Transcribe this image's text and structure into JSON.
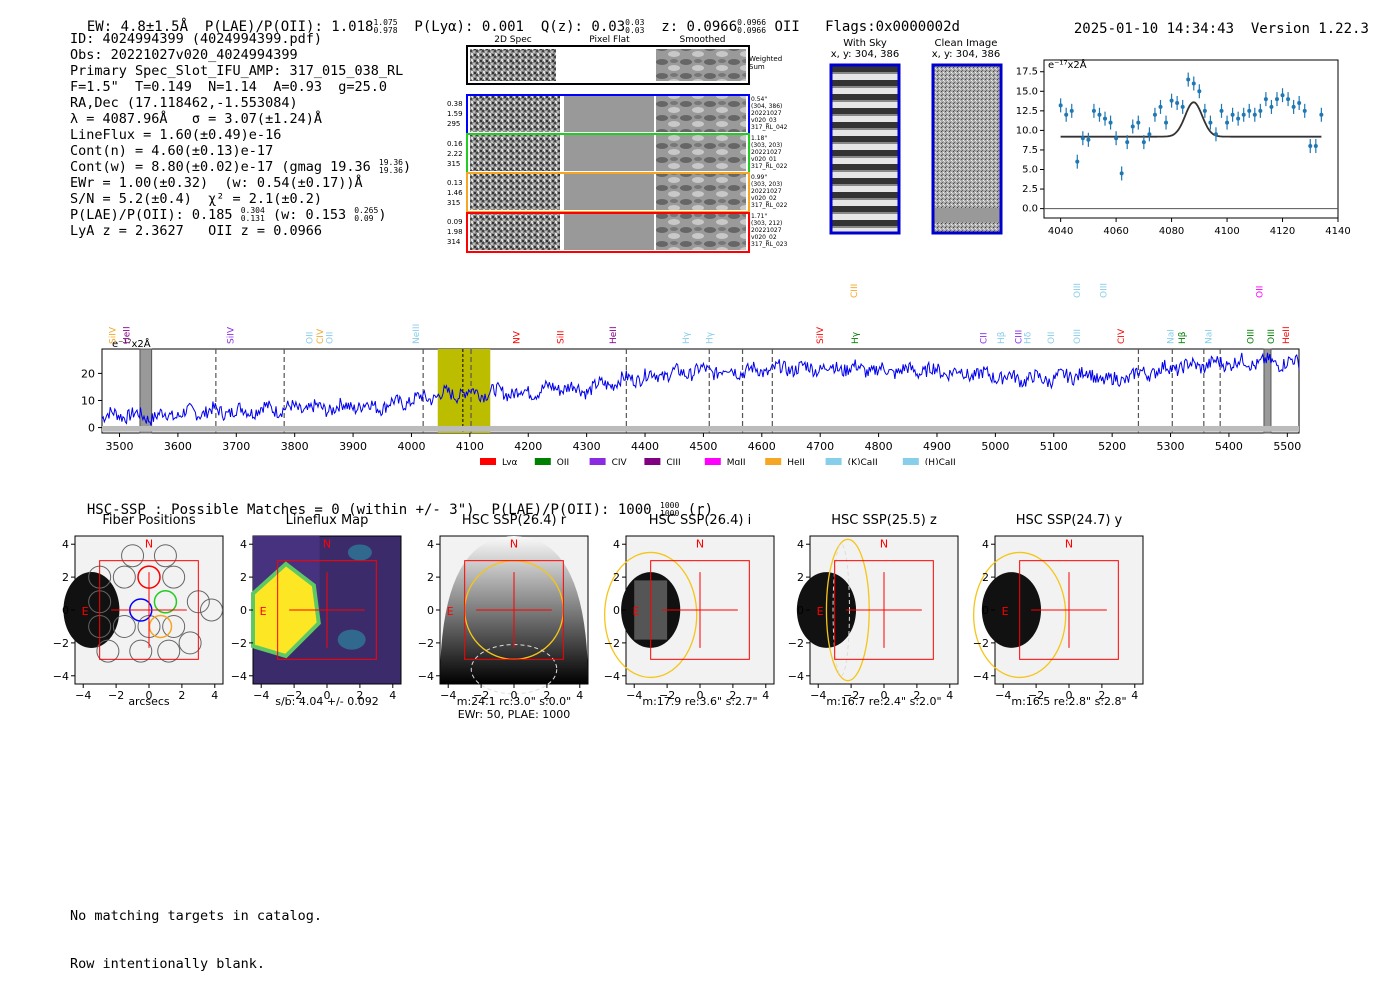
{
  "header": {
    "ew": "EW: 4.8±1.5Å",
    "plae_label": "P(LAE)/P(OII): 1.018",
    "plae_hi": "1.075",
    "plae_lo": "0.978",
    "plya": "P(Lyα): 0.001",
    "qz_label": "Q(z): 0.03",
    "qz_hi": "0.03",
    "qz_lo": "0.03",
    "z_label": "z: 0.0966",
    "z_hi": "0.0966",
    "z_lo": "0.0966",
    "z_line": "OII",
    "flags": "Flags:0x0000002d",
    "timestamp": "2025-01-10 14:34:43",
    "version": "Version 1.22.3"
  },
  "info": {
    "lines": [
      "ID: 4024994399 (4024994399.pdf)",
      "Obs: 20221027v020_4024994399",
      "Primary Spec_Slot_IFU_AMP: 317_015_038_RL",
      "F=1.5\"  T=0.149  N=1.14  A=0.93  g=25.0",
      "RA,Dec (17.118462,-1.553084)",
      "λ = 4087.96Å   σ = 3.07(±1.24)Å",
      "LineFlux = 1.60(±0.49)e-16",
      "Cont(n) = 4.60(±0.13)e-17"
    ],
    "contw": "Cont(w) = 8.80(±0.02)e-17 (gmag 19.36",
    "contw_hi": "19.36",
    "contw_lo": "19.36",
    "contw_end": ")",
    "ewr": "EWr = 1.00(±0.32)  (w: 0.54(±0.17))Å",
    "sn": "S/N = 5.2(±0.4)  χ² = 2.1(±0.2)",
    "plae": "P(LAE)/P(OII): 0.185",
    "plae_hi": "0.304",
    "plae_lo": "0.131",
    "plae_w": "(w: 0.153",
    "plae_w_hi": "0.265",
    "plae_w_lo": "0.09",
    "plae_w_end": ")",
    "lya_z": "LyA z = 2.3627   OII z = 0.0966"
  },
  "cutouts": {
    "headers": [
      "2D Spec",
      "Pixel Flat",
      "Smoothed"
    ],
    "weighted_label": "Weighted Sum",
    "rows": [
      {
        "left": [
          "0.38",
          "1.59",
          "295"
        ],
        "right": [
          "0.54\"",
          "(304, 386)",
          "20221027",
          "v020_03",
          "317_RL_042"
        ],
        "color": "#0000ff"
      },
      {
        "left": [
          "0.16",
          "2.22",
          "315"
        ],
        "right": [
          "1.18\"",
          "(303, 203)",
          "20221027",
          "v020_01",
          "317_RL_022"
        ],
        "color": "#22cc22"
      },
      {
        "left": [
          "0.13",
          "1.46",
          "315"
        ],
        "right": [
          "0.99\"",
          "(303, 203)",
          "20221027",
          "v020_02",
          "317_RL_022"
        ],
        "color": "#f5a623"
      },
      {
        "left": [
          "0.09",
          "1.98",
          "314"
        ],
        "right": [
          "1.71\"",
          "(303, 212)",
          "20221027",
          "v020_02",
          "317_RL_023"
        ],
        "color": "#ff0000"
      }
    ],
    "with_sky_title": "With Sky",
    "with_sky_xy": "x, y: 304, 386",
    "clean_title": "Clean Image",
    "clean_xy": "x, y: 304, 386"
  },
  "fit_plot": {
    "unit": "e⁻¹⁷x2Å",
    "xticks": [
      "4040",
      "4060",
      "4080",
      "4100",
      "4120",
      "4140"
    ],
    "yticks": [
      "0.0",
      "2.5",
      "5.0",
      "7.5",
      "10.0",
      "12.5",
      "15.0",
      "17.5"
    ]
  },
  "chart_data": [
    {
      "type": "scatter",
      "title": "",
      "xlabel": "",
      "ylabel": "e⁻¹⁷x2Å",
      "xlim": [
        4034,
        4140
      ],
      "ylim": [
        -1.2,
        19
      ],
      "points": [
        [
          4040,
          13.2
        ],
        [
          4042,
          12
        ],
        [
          4044,
          12.5
        ],
        [
          4046,
          6
        ],
        [
          4048,
          9
        ],
        [
          4050,
          8.8
        ],
        [
          4052,
          12.5
        ],
        [
          4054,
          12
        ],
        [
          4056,
          11.5
        ],
        [
          4058,
          11
        ],
        [
          4060,
          9
        ],
        [
          4062,
          4.5
        ],
        [
          4064,
          8.5
        ],
        [
          4066,
          10.5
        ],
        [
          4068,
          11
        ],
        [
          4070,
          8.5
        ],
        [
          4072,
          9.5
        ],
        [
          4074,
          12
        ],
        [
          4076,
          13
        ],
        [
          4078,
          11
        ],
        [
          4080,
          13.8
        ],
        [
          4082,
          13.5
        ],
        [
          4084,
          13
        ],
        [
          4086,
          16.5
        ],
        [
          4088,
          16
        ],
        [
          4090,
          15
        ],
        [
          4092,
          12.5
        ],
        [
          4094,
          11
        ],
        [
          4096,
          9.5
        ],
        [
          4098,
          12.5
        ],
        [
          4100,
          11
        ],
        [
          4102,
          12
        ],
        [
          4104,
          11.5
        ],
        [
          4106,
          12
        ],
        [
          4108,
          12.5
        ],
        [
          4110,
          12
        ],
        [
          4112,
          12.5
        ],
        [
          4114,
          14
        ],
        [
          4116,
          13
        ],
        [
          4118,
          14
        ],
        [
          4120,
          14.5
        ],
        [
          4122,
          14
        ],
        [
          4124,
          13
        ],
        [
          4126,
          13.5
        ],
        [
          4128,
          12.5
        ],
        [
          4130,
          8
        ],
        [
          4132,
          8
        ],
        [
          4134,
          12
        ]
      ],
      "model": {
        "center": 4087.96,
        "sigma": 3.07,
        "amplitude": 4.4,
        "continuum": 9.2
      }
    },
    {
      "type": "line",
      "title": "",
      "xlabel": "",
      "ylabel": "e⁻¹⁷x2Å",
      "xlim": [
        3470,
        5520
      ],
      "ylim": [
        -2,
        29
      ],
      "xticks": [
        3500,
        3600,
        3700,
        3800,
        3900,
        4000,
        4100,
        4200,
        4300,
        4400,
        4500,
        4600,
        4700,
        4800,
        4900,
        5000,
        5100,
        5200,
        5300,
        5400,
        5500
      ],
      "yticks": [
        0,
        10,
        20
      ],
      "anchors": [
        [
          3470,
          4
        ],
        [
          3500,
          5
        ],
        [
          3550,
          4
        ],
        [
          3600,
          5
        ],
        [
          3650,
          6
        ],
        [
          3700,
          6
        ],
        [
          3750,
          7
        ],
        [
          3800,
          7
        ],
        [
          3850,
          7
        ],
        [
          3900,
          8
        ],
        [
          3950,
          8
        ],
        [
          4000,
          10
        ],
        [
          4050,
          12
        ],
        [
          4100,
          13
        ],
        [
          4150,
          13
        ],
        [
          4200,
          13
        ],
        [
          4250,
          15
        ],
        [
          4300,
          14
        ],
        [
          4350,
          17
        ],
        [
          4400,
          19
        ],
        [
          4450,
          20
        ],
        [
          4500,
          21
        ],
        [
          4550,
          21
        ],
        [
          4600,
          21
        ],
        [
          4650,
          22
        ],
        [
          4700,
          22
        ],
        [
          4750,
          22
        ],
        [
          4800,
          21
        ],
        [
          4850,
          21
        ],
        [
          4900,
          21
        ],
        [
          4950,
          20
        ],
        [
          5000,
          19
        ],
        [
          5050,
          18
        ],
        [
          5100,
          18
        ],
        [
          5150,
          20
        ],
        [
          5200,
          17
        ],
        [
          5250,
          20
        ],
        [
          5300,
          22
        ],
        [
          5350,
          23
        ],
        [
          5400,
          24
        ],
        [
          5450,
          24
        ],
        [
          5500,
          24
        ],
        [
          5520,
          24
        ]
      ],
      "highlight_band": [
        4045,
        4135
      ],
      "marker_line": 4088,
      "masked_bands": [
        [
          3535,
          3555
        ],
        [
          5460,
          5472
        ]
      ],
      "dashed_lines": [
        3665,
        3782,
        4020,
        4102,
        4368,
        4510,
        4567,
        4618,
        5245,
        5303,
        5357,
        5385
      ],
      "line_labels": [
        {
          "name": "SiIV",
          "x": 3488,
          "color": "#f5a623",
          "row": 0
        },
        {
          "name": "HeII",
          "x": 3512,
          "color": "#8b008b",
          "row": 0
        },
        {
          "name": "SiIV",
          "x": 3690,
          "color": "#8a2be2",
          "row": 0
        },
        {
          "name": "OII",
          "x": 3825,
          "color": "#87ceeb",
          "row": 0
        },
        {
          "name": "CIV",
          "x": 3843,
          "color": "#f5a623",
          "row": 0
        },
        {
          "name": "OII",
          "x": 3860,
          "color": "#87ceeb",
          "row": 0
        },
        {
          "name": "NeIII",
          "x": 4008,
          "color": "#87ceeb",
          "row": 0
        },
        {
          "name": "NV",
          "x": 4180,
          "color": "#ff0000",
          "row": 0
        },
        {
          "name": "SiII",
          "x": 4255,
          "color": "#ff0000",
          "row": 0
        },
        {
          "name": "HeII",
          "x": 4345,
          "color": "#8b008b",
          "row": 0
        },
        {
          "name": "Hγ",
          "x": 4470,
          "color": "#87ceeb",
          "row": 0
        },
        {
          "name": "Hγ",
          "x": 4510,
          "color": "#87ceeb",
          "row": 0
        },
        {
          "name": "SiIV",
          "x": 4700,
          "color": "#ff0000",
          "row": 0
        },
        {
          "name": "CIII",
          "x": 4758,
          "color": "#f5a623",
          "row": 1
        },
        {
          "name": "Hγ",
          "x": 4760,
          "color": "#008000",
          "row": 0
        },
        {
          "name": "CII",
          "x": 4980,
          "color": "#8a2be2",
          "row": 0
        },
        {
          "name": "Hβ",
          "x": 5010,
          "color": "#87ceeb",
          "row": 0
        },
        {
          "name": "CIII",
          "x": 5040,
          "color": "#8a2be2",
          "row": 0
        },
        {
          "name": "Hδ",
          "x": 5055,
          "color": "#87ceeb",
          "row": 0
        },
        {
          "name": "OII",
          "x": 5095,
          "color": "#87ceeb",
          "row": 0
        },
        {
          "name": "OIII",
          "x": 5140,
          "color": "#87ceeb",
          "row": 0
        },
        {
          "name": "OIII",
          "x": 5140,
          "color": "#87ceeb",
          "row": 1
        },
        {
          "name": "OIII",
          "x": 5185,
          "color": "#87ceeb",
          "row": 1
        },
        {
          "name": "CIV",
          "x": 5215,
          "color": "#ff0000",
          "row": 0
        },
        {
          "name": "NaI",
          "x": 5300,
          "color": "#87ceeb",
          "row": 0
        },
        {
          "name": "Hβ",
          "x": 5320,
          "color": "#008000",
          "row": 0
        },
        {
          "name": "NaI",
          "x": 5365,
          "color": "#87ceeb",
          "row": 0
        },
        {
          "name": "OIII",
          "x": 5437,
          "color": "#008000",
          "row": 0
        },
        {
          "name": "OII",
          "x": 5452,
          "color": "#ff00ff",
          "row": 1
        },
        {
          "name": "OIII",
          "x": 5472,
          "color": "#008000",
          "row": 0
        },
        {
          "name": "HeII",
          "x": 5498,
          "color": "#ff0000",
          "row": 0
        }
      ],
      "legend": [
        {
          "name": "Lyα",
          "color": "#ff0000"
        },
        {
          "name": "OII",
          "color": "#008000"
        },
        {
          "name": "CIV",
          "color": "#8a2be2"
        },
        {
          "name": "CIII",
          "color": "#800080"
        },
        {
          "name": "MgII",
          "color": "#ff00ff"
        },
        {
          "name": "HeII",
          "color": "#f5a623"
        },
        {
          "name": "(K)CaII",
          "color": "#87ceeb"
        },
        {
          "name": "(H)CaII",
          "color": "#87ceeb"
        }
      ]
    }
  ],
  "hsc": {
    "line": "HSC-SSP : Possible Matches = 0 (within +/- 3\")  P(LAE)/P(OII): 1000",
    "hi": "1000",
    "lo": "1000",
    "band": "(r)",
    "panels": [
      {
        "title": "Fiber Positions",
        "label1": "arcsecs",
        "label2": ""
      },
      {
        "title": "Lineflux Map",
        "label1": "s/b: 4.04 +/- 0.092",
        "label2": ""
      },
      {
        "title": "HSC SSP(26.4) r",
        "label1": "m:24.1 rc:3.0\"  s:0.0\"",
        "label2": "EWr: 50, PLAE: 1000"
      },
      {
        "title": "HSC SSP(26.4) i",
        "label1": "m:17.9  re:3.6\"  s:2.7\"",
        "label2": ""
      },
      {
        "title": "HSC SSP(25.5) z",
        "label1": "m:16.7  re:2.4\"  s:2.0\"",
        "label2": ""
      },
      {
        "title": "HSC SSP(24.7) y",
        "label1": "m:16.5  re:2.8\"  s:2.8\"",
        "label2": ""
      }
    ],
    "ticks": [
      "−4",
      "−2",
      "0",
      "2",
      "4"
    ],
    "north": "N",
    "east": "E"
  },
  "footer": {
    "line1": "No matching targets in catalog.",
    "line2": "Row intentionally blank."
  }
}
